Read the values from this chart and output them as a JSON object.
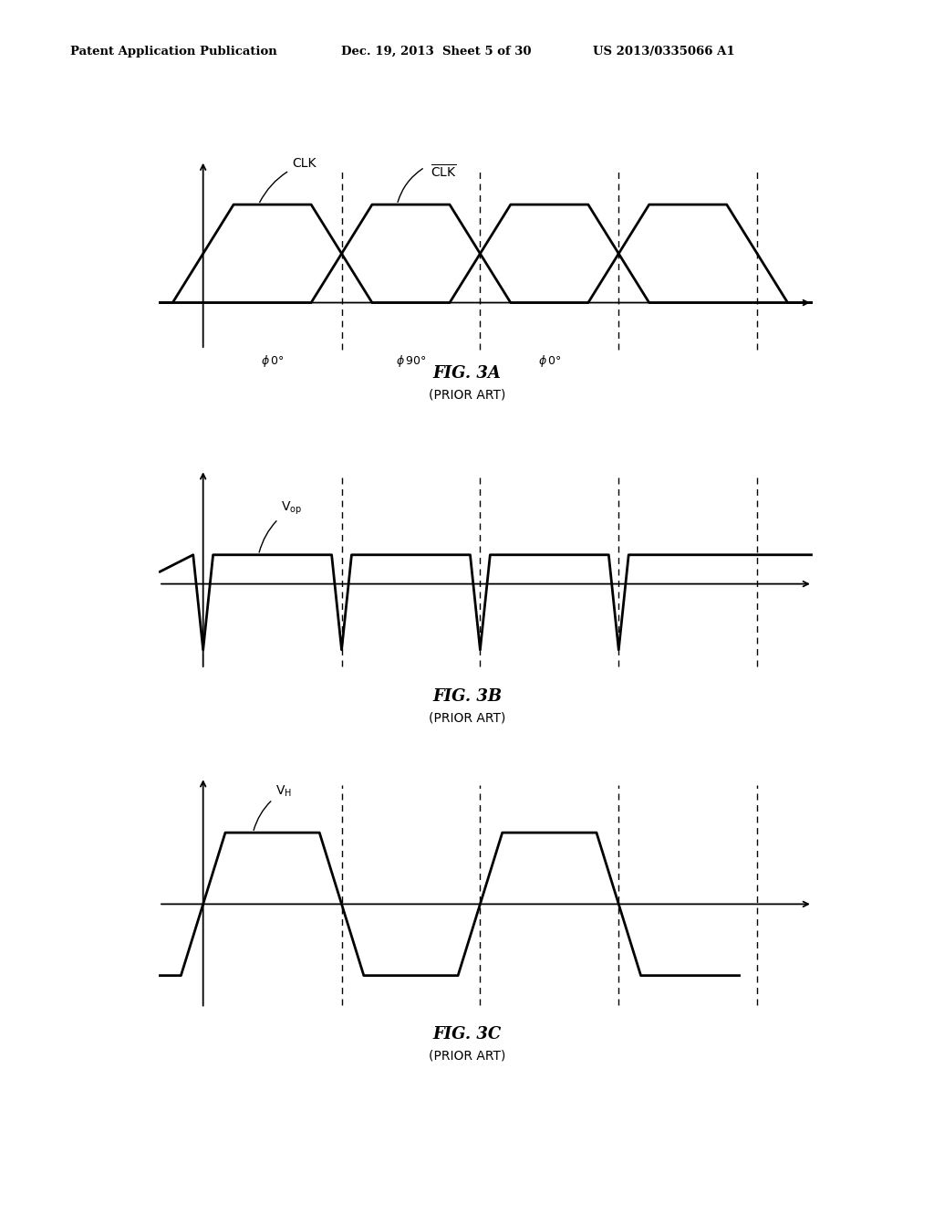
{
  "bg_color": "#ffffff",
  "header_left": "Patent Application Publication",
  "header_mid": "Dec. 19, 2013  Sheet 5 of 30",
  "header_right": "US 2013/0335066 A1",
  "fig3a_title": "FIG. 3A",
  "fig3b_title": "FIG. 3B",
  "fig3c_title": "FIG. 3C",
  "prior_art": "(PRIOR ART)"
}
